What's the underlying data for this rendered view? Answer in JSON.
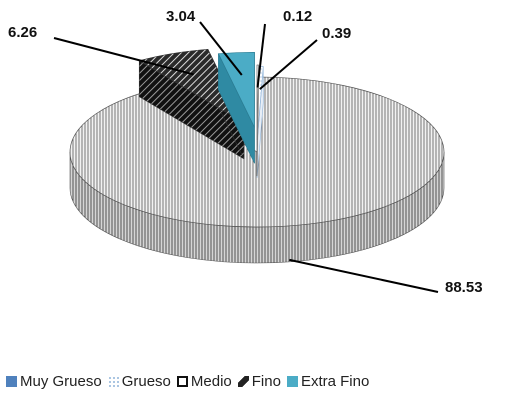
{
  "chart_data": {
    "type": "pie",
    "slices": [
      {
        "label": "Muy Grueso",
        "value": 0.12,
        "data_label": "0.12",
        "color": "#4f81bd"
      },
      {
        "label": "Grueso",
        "value": 0.39,
        "data_label": "0.39",
        "color": "#9bbbd9"
      },
      {
        "label": "Medio",
        "value": 88.53,
        "data_label": "88.53",
        "color": "#e8e8e8"
      },
      {
        "label": "Fino",
        "value": 6.26,
        "data_label": "6.26",
        "color": "#3a3a3a"
      },
      {
        "label": "Extra Fino",
        "value": 3.04,
        "data_label": "3.04",
        "color": "#4bacc6"
      }
    ],
    "legend": {
      "position": "bottom",
      "items": [
        "Muy Grueso",
        "Grueso",
        "Medio",
        "Fino",
        "Extra Fino"
      ]
    },
    "style": "3d-exploded"
  }
}
